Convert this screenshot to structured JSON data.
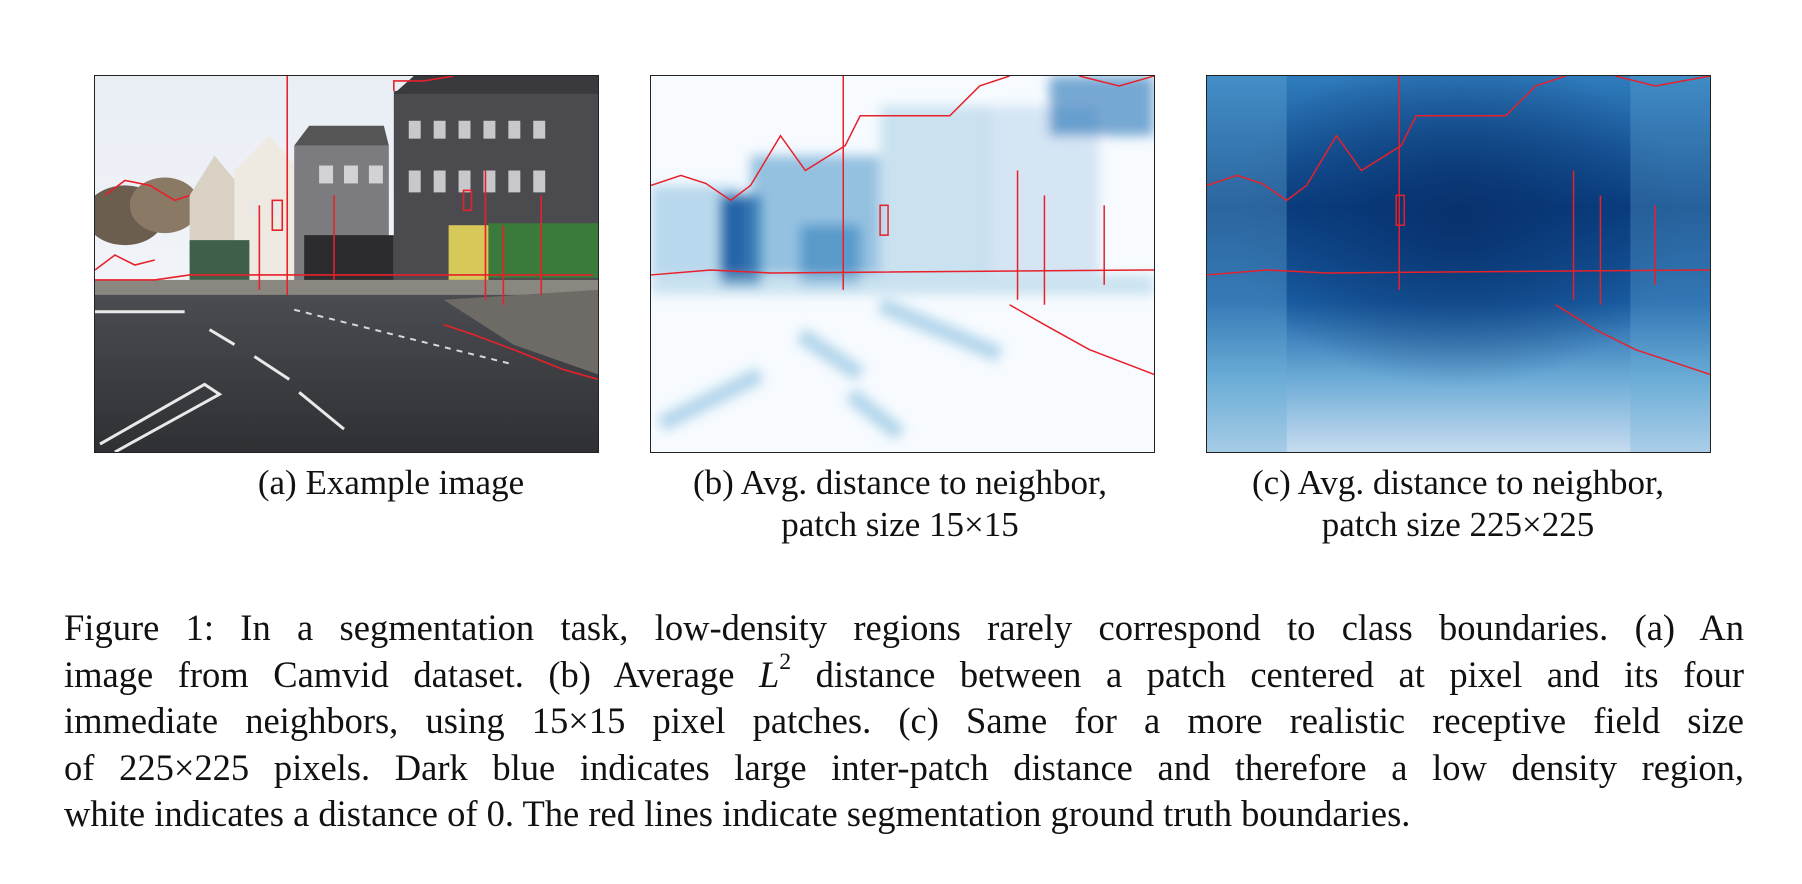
{
  "subcaptions": {
    "a": "(a) Example image",
    "b_line1": "(b) Avg. distance to neighbor,",
    "b_line2": "patch size 15×15",
    "c_line1": "(c) Avg. distance to neighbor,",
    "c_line2": "patch size 225×225"
  },
  "caption": {
    "line1": "Figure 1: In a segmentation task, low-density regions rarely correspond to class boundaries. (a) An",
    "line2_pre": "image from Camvid dataset. (b) Average ",
    "line2_math": "L",
    "line2_sup": "2",
    "line2_post": " distance between a patch centered at pixel and its four",
    "line3": "immediate neighbors, using 15×15 pixel patches. (c) Same for a more realistic receptive field size",
    "line4": "of 225×225 pixels. Dark blue indicates large inter-patch distance and therefore a low density region,",
    "line5": "white indicates a distance of 0. The red lines indicate segmentation ground truth boundaries."
  },
  "colors": {
    "boundary": "#e8202a",
    "dark_blue": "#08306b",
    "mid_blue": "#2171b5",
    "light_blue": "#c6dbef",
    "road": "#3b3d42"
  }
}
